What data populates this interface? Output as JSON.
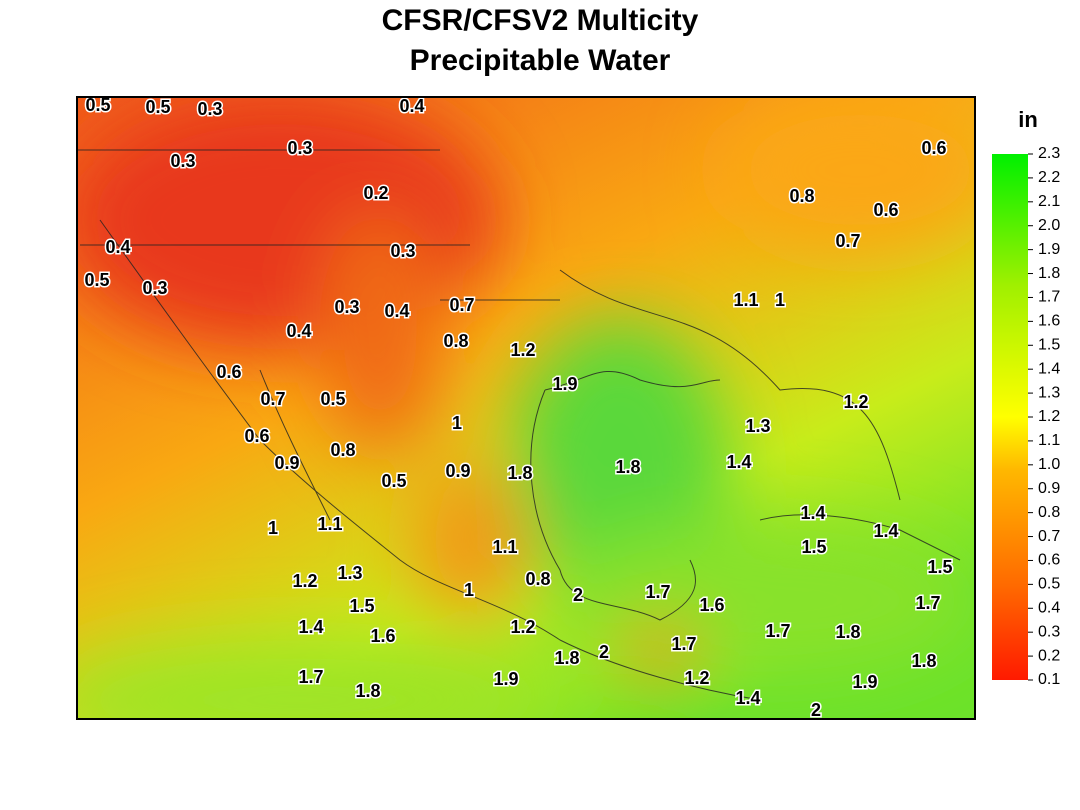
{
  "title_lines": [
    "CFSR/CFSV2 Multicity",
    "Precipitable Water"
  ],
  "colorbar": {
    "unit": "in",
    "lim": [
      0.1,
      2.3
    ],
    "ticks": [
      0.1,
      0.2,
      0.3,
      0.4,
      0.5,
      0.6,
      0.7,
      0.8,
      0.9,
      {
        "value": 1,
        "label": "1.0"
      },
      1.1,
      1.2,
      1.3,
      1.4,
      1.5,
      1.6,
      1.7,
      1.8,
      1.9,
      {
        "value": 2,
        "label": "2.0"
      },
      2.1,
      2.2,
      2.3
    ]
  },
  "contour_labels": [
    0.5,
    0.5,
    0.3,
    0.4,
    0.3,
    0.3,
    0.6,
    0.2,
    0.8,
    0.6,
    0.7,
    0.4,
    0.3,
    0.5,
    0.3,
    1.1,
    1,
    0.3,
    0.4,
    0.7,
    0.4,
    0.8,
    1.2,
    0.6,
    1.9,
    0.7,
    0.5,
    1.2,
    1,
    1.3,
    0.6,
    0.8,
    0.9,
    1.4,
    1.8,
    0.9,
    1.8,
    0.5,
    1.4,
    1,
    1.1,
    1.4,
    1.5,
    1.1,
    1.5,
    1.3,
    1.2,
    0.8,
    1,
    2,
    1.7,
    1.6,
    1.5,
    1.7,
    1.4,
    1.2,
    1.7,
    1.8,
    1.6,
    1.7,
    2,
    1.8,
    1.8,
    1.7,
    1.9,
    1.2,
    1.9,
    1.8,
    1.4,
    2
  ]
}
